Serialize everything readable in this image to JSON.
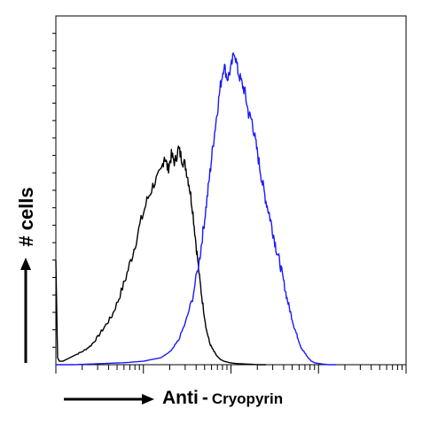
{
  "chart_data": {
    "type": "line",
    "title": "",
    "ylabel": "# cells",
    "xlabel_main": "Anti",
    "xlabel_separator": "-",
    "xlabel_target": "Cryopyrin",
    "xscale": "log",
    "grid": false,
    "xlim": [
      0,
      1
    ],
    "ylim": [
      0,
      1
    ],
    "series": [
      {
        "color": "#000000",
        "x": [
          0.0,
          0.005,
          0.01,
          0.02,
          0.04,
          0.06,
          0.08,
          0.1,
          0.12,
          0.14,
          0.16,
          0.18,
          0.2,
          0.22,
          0.24,
          0.26,
          0.28,
          0.3,
          0.31,
          0.32,
          0.33,
          0.34,
          0.35,
          0.36,
          0.37,
          0.38,
          0.39,
          0.4,
          0.41,
          0.42,
          0.43,
          0.44,
          0.45,
          0.46,
          0.47,
          0.48,
          0.5,
          0.52,
          0.54,
          0.56,
          0.58,
          0.6
        ],
        "values": [
          0.3,
          0.02,
          0.01,
          0.01,
          0.02,
          0.03,
          0.04,
          0.055,
          0.08,
          0.11,
          0.14,
          0.19,
          0.25,
          0.32,
          0.4,
          0.47,
          0.52,
          0.55,
          0.6,
          0.56,
          0.6,
          0.58,
          0.62,
          0.59,
          0.57,
          0.52,
          0.45,
          0.35,
          0.25,
          0.17,
          0.1,
          0.06,
          0.04,
          0.025,
          0.015,
          0.01,
          0.005,
          0.003,
          0.002,
          0.001,
          0.0,
          0.0
        ]
      },
      {
        "color": "#1a1aff",
        "x": [
          0.0,
          0.05,
          0.1,
          0.15,
          0.2,
          0.25,
          0.3,
          0.33,
          0.35,
          0.37,
          0.39,
          0.41,
          0.42,
          0.43,
          0.44,
          0.45,
          0.46,
          0.47,
          0.48,
          0.49,
          0.5,
          0.51,
          0.52,
          0.53,
          0.54,
          0.55,
          0.56,
          0.57,
          0.58,
          0.59,
          0.6,
          0.61,
          0.62,
          0.63,
          0.64,
          0.65,
          0.66,
          0.67,
          0.68,
          0.69,
          0.7,
          0.71,
          0.72,
          0.73,
          0.74,
          0.76,
          0.78,
          0.8
        ],
        "values": [
          0.0,
          0.0,
          0.002,
          0.004,
          0.006,
          0.01,
          0.02,
          0.04,
          0.07,
          0.12,
          0.19,
          0.3,
          0.38,
          0.46,
          0.55,
          0.64,
          0.72,
          0.8,
          0.86,
          0.82,
          0.85,
          0.9,
          0.84,
          0.81,
          0.78,
          0.72,
          0.7,
          0.64,
          0.58,
          0.52,
          0.47,
          0.43,
          0.38,
          0.33,
          0.29,
          0.24,
          0.19,
          0.15,
          0.11,
          0.08,
          0.05,
          0.035,
          0.02,
          0.01,
          0.005,
          0.002,
          0.0,
          0.0
        ]
      }
    ]
  }
}
